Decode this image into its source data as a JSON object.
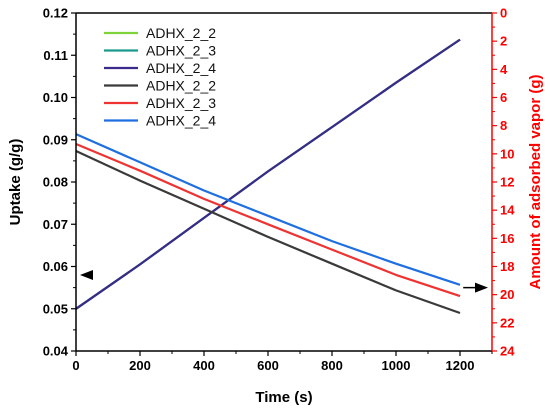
{
  "chart_data": {
    "type": "line",
    "xlabel": "Time (s)",
    "ylabel_left": "Uptake (g/g)",
    "ylabel_right": "Amount of adsorbed vapor (g)",
    "xlim": [
      0,
      1300
    ],
    "ylim_left": [
      0.04,
      0.12
    ],
    "ylim_right": [
      0,
      24
    ],
    "right_axis_inverted": true,
    "x_ticks": [
      0,
      200,
      400,
      600,
      800,
      1000,
      1200
    ],
    "x_tick_labels": [
      "0",
      "200",
      "400",
      "600",
      "800",
      "1000",
      "1200"
    ],
    "y_left_ticks": [
      0.04,
      0.05,
      0.06,
      0.07,
      0.08,
      0.09,
      0.1,
      0.11,
      0.12
    ],
    "y_left_tick_labels": [
      "0.04",
      "0.05",
      "0.06",
      "0.07",
      "0.08",
      "0.09",
      "0.10",
      "0.11",
      "0.12"
    ],
    "y_right_ticks": [
      0,
      2,
      4,
      6,
      8,
      10,
      12,
      14,
      16,
      18,
      20,
      22,
      24
    ],
    "y_right_tick_labels": [
      "0",
      "2",
      "4",
      "6",
      "8",
      "10",
      "12",
      "14",
      "16",
      "18",
      "20",
      "22",
      "24"
    ],
    "legend_position": "top-left",
    "axis_colors": {
      "left": "#000000",
      "right": "#ff0000"
    },
    "arrows": [
      {
        "direction": "left",
        "points_to": "left-axis",
        "x": 40,
        "y": 0.058
      },
      {
        "direction": "right",
        "points_to": "right-axis",
        "x": 1210,
        "y": 0.055
      }
    ],
    "series": [
      {
        "name": "ADHX_2_2",
        "axis": "left",
        "color": "#7fd33a",
        "x": [
          0,
          200,
          400,
          600,
          800,
          1000,
          1200
        ],
        "y": [
          0.05,
          0.0605,
          0.0715,
          0.0825,
          0.093,
          0.1035,
          0.1137
        ]
      },
      {
        "name": "ADHX_2_3",
        "axis": "left",
        "color": "#1a9a8c",
        "x": [
          0,
          200,
          400,
          600,
          800,
          1000,
          1200
        ],
        "y": [
          0.05,
          0.0605,
          0.0715,
          0.0825,
          0.093,
          0.1035,
          0.1137
        ]
      },
      {
        "name": "ADHX_2_4",
        "axis": "left",
        "color": "#3b2a8a",
        "x": [
          0,
          200,
          400,
          600,
          800,
          1000,
          1200
        ],
        "y": [
          0.05,
          0.0605,
          0.0715,
          0.0825,
          0.093,
          0.1035,
          0.1137
        ]
      },
      {
        "name": "ADHX_2_2",
        "axis": "right",
        "color": "#3a3a3a",
        "x": [
          0,
          200,
          400,
          600,
          800,
          1000,
          1200
        ],
        "y": [
          9.8,
          11.9,
          13.9,
          15.9,
          17.8,
          19.7,
          21.3
        ]
      },
      {
        "name": "ADHX_2_3",
        "axis": "right",
        "color": "#ee3333",
        "x": [
          0,
          200,
          400,
          600,
          800,
          1000,
          1200
        ],
        "y": [
          9.3,
          11.2,
          13.2,
          15.0,
          16.8,
          18.6,
          20.1
        ]
      },
      {
        "name": "ADHX_2_4",
        "axis": "right",
        "color": "#1f6fe0",
        "x": [
          0,
          200,
          400,
          600,
          800,
          1000,
          1200
        ],
        "y": [
          8.6,
          10.6,
          12.6,
          14.4,
          16.2,
          17.8,
          19.3
        ]
      }
    ]
  }
}
